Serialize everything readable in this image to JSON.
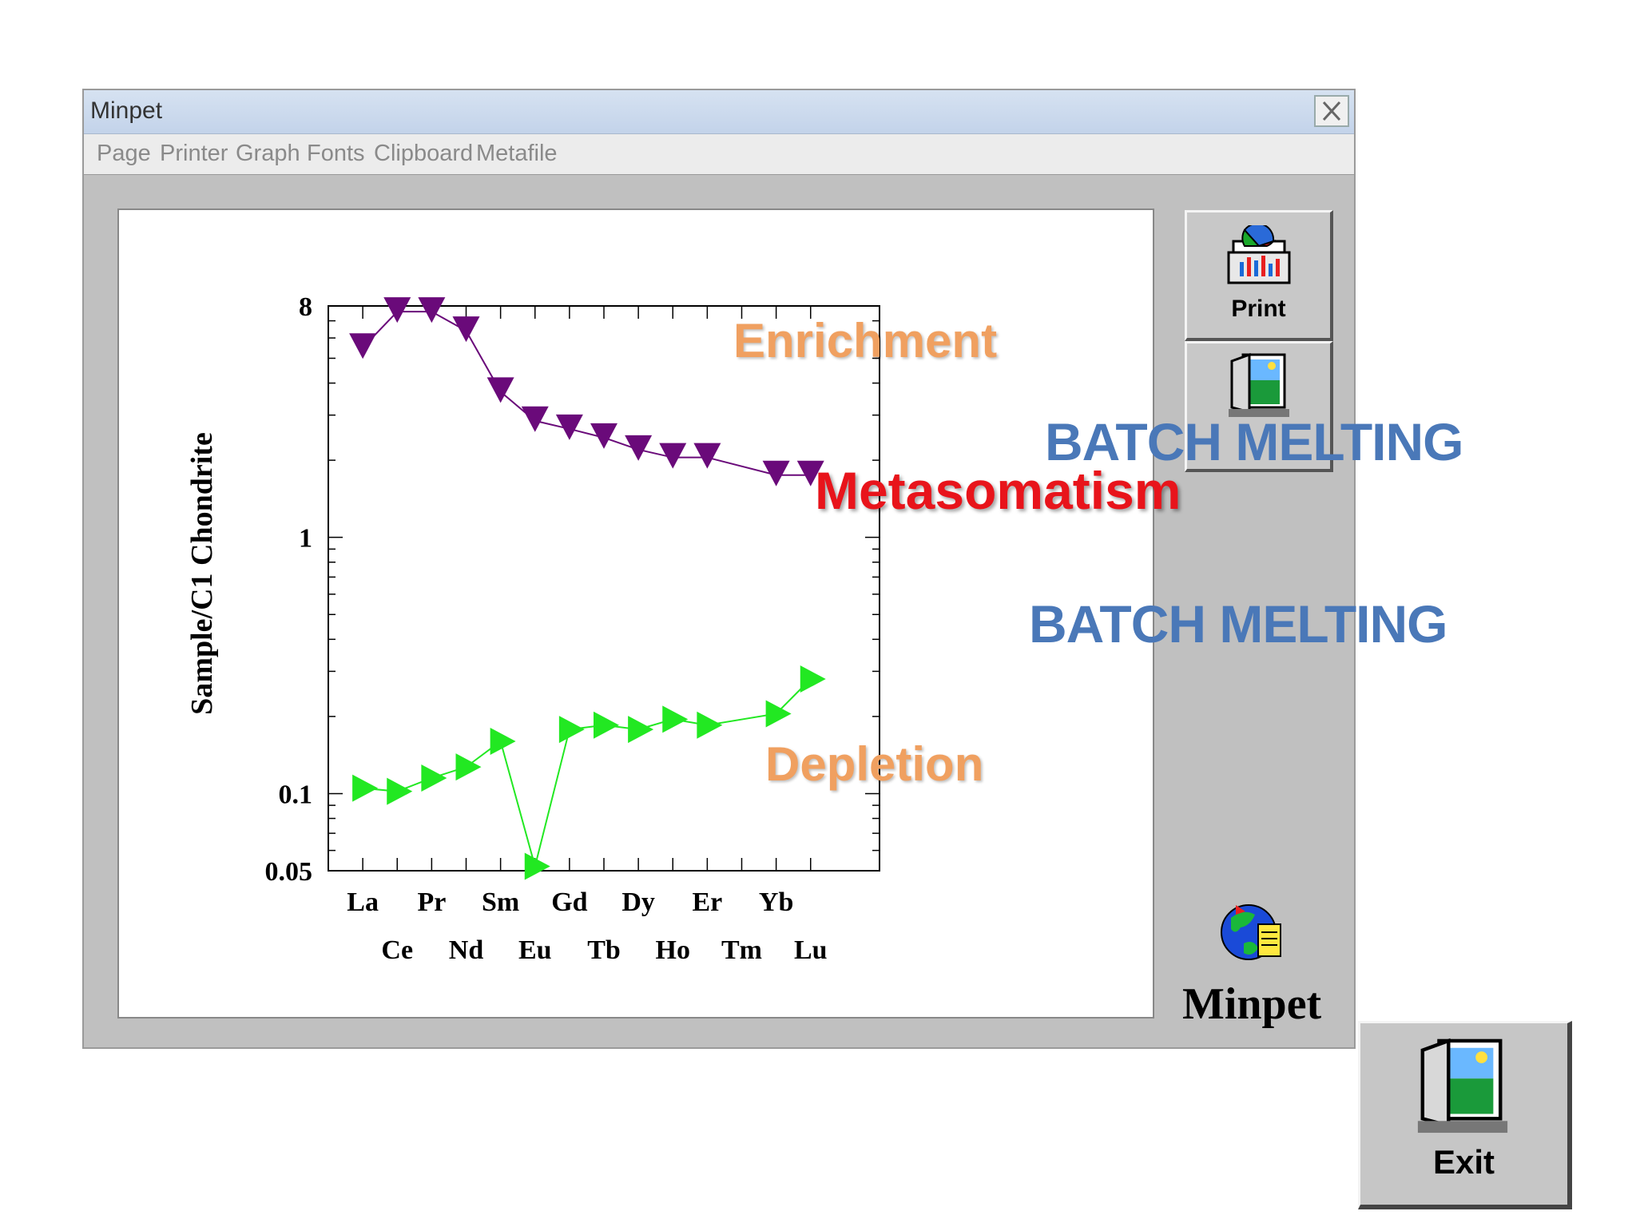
{
  "window": {
    "title": "Minpet"
  },
  "menu": [
    "Page",
    "Printer",
    "Graph",
    "Fonts",
    "Clipboard",
    "Metafile"
  ],
  "buttons": {
    "print_label": "Print",
    "exit_label": "Exit"
  },
  "logo_text": "Minpet",
  "overlays": {
    "batch_melting_top": "BATCH MELTING",
    "metasomatism": "Metasomatism",
    "batch_melting_bottom": "BATCH MELTING",
    "enrichment": "Enrichment",
    "depletion": "Depletion"
  },
  "colors": {
    "enriched_series": "#6a0a7a",
    "depleted_series": "#22e822",
    "batch_text": "#4a78b8",
    "metasomatism_text": "#e8141b",
    "annotation_text": "#f0a060"
  },
  "chart_data": {
    "type": "line",
    "ylabel": "Sample/C1 Chondrite",
    "yscale": "log",
    "ylim": [
      0.05,
      8
    ],
    "yticks": [
      {
        "value": 8,
        "label": "8"
      },
      {
        "value": 1,
        "label": "1"
      },
      {
        "value": 0.1,
        "label": "0.1"
      },
      {
        "value": 0.05,
        "label": "0.05"
      }
    ],
    "categories": [
      "La",
      "Ce",
      "Pr",
      "Nd",
      "Sm",
      "Eu",
      "Gd",
      "Tb",
      "Dy",
      "Ho",
      "Er",
      "Tm",
      "Yb",
      "Lu"
    ],
    "series": [
      {
        "key": "enriched",
        "color": "#6a0a7a",
        "marker": "triangle-down",
        "x": [
          "La",
          "Ce",
          "Pr",
          "Nd",
          "Sm",
          "Eu",
          "Gd",
          "Tb",
          "Dy",
          "Ho",
          "Er",
          "Yb",
          "Lu"
        ],
        "values": [
          5.5,
          7.6,
          7.6,
          6.4,
          3.7,
          2.85,
          2.65,
          2.45,
          2.2,
          2.05,
          2.05,
          1.75,
          1.75
        ]
      },
      {
        "key": "depleted",
        "color": "#22e822",
        "marker": "triangle-right",
        "x": [
          "La",
          "Ce",
          "Pr",
          "Nd",
          "Sm",
          "Eu",
          "Gd",
          "Tb",
          "Dy",
          "Ho",
          "Er",
          "Yb",
          "Lu"
        ],
        "values": [
          0.105,
          0.102,
          0.115,
          0.127,
          0.16,
          0.052,
          0.178,
          0.185,
          0.178,
          0.195,
          0.185,
          0.205,
          0.28
        ]
      }
    ]
  }
}
